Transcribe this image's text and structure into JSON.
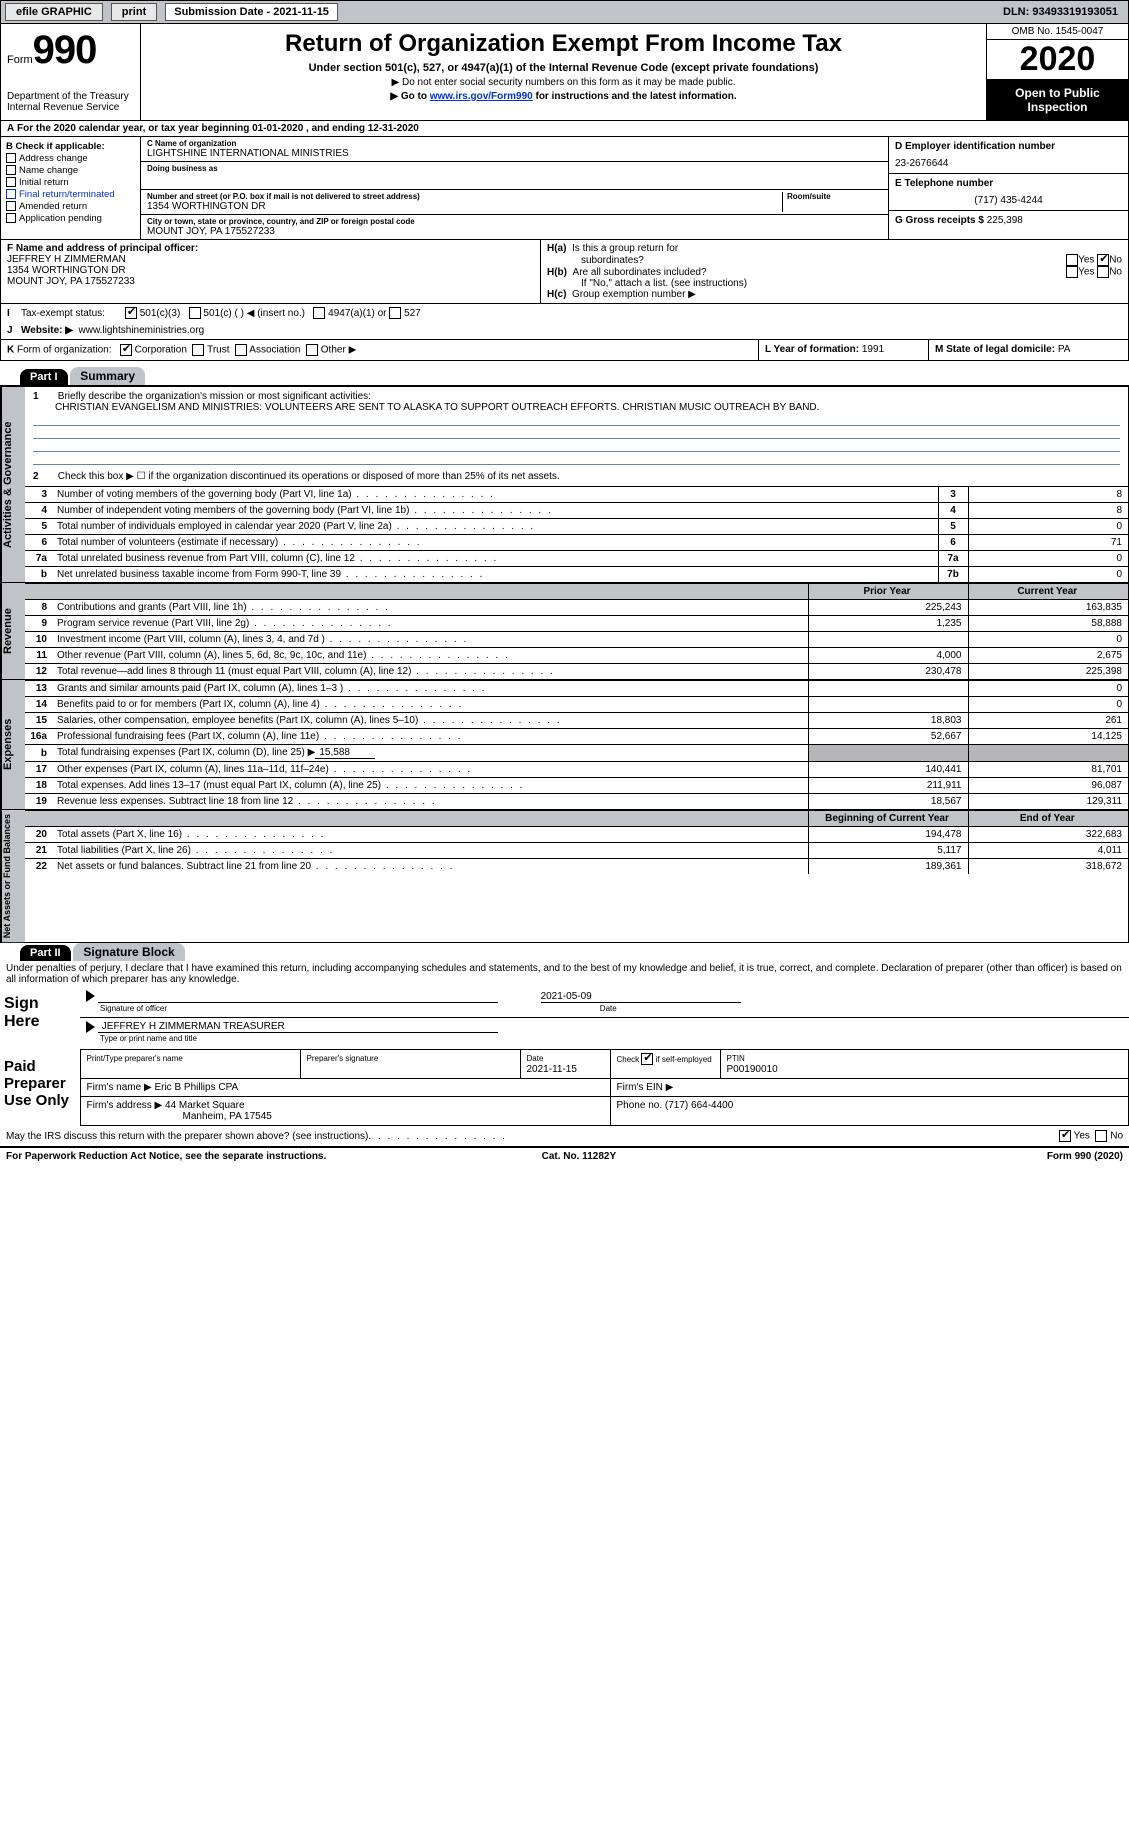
{
  "topbar": {
    "efile": "efile GRAPHIC",
    "print": "print",
    "submission": "Submission Date - 2021-11-15",
    "dln": "DLN: 93493319193051"
  },
  "header": {
    "form_label": "Form",
    "form_num": "990",
    "dept1": "Department of the Treasury",
    "dept2": "Internal Revenue Service",
    "title": "Return of Organization Exempt From Income Tax",
    "subtitle": "Under section 501(c), 527, or 4947(a)(1) of the Internal Revenue Code (except private foundations)",
    "note1_pre": "▶ Do not enter social security numbers on this form as it may be made public.",
    "note2_pre": "▶ Go to ",
    "note2_link": "www.irs.gov/Form990",
    "note2_post": " for instructions and the latest information.",
    "omb": "OMB No. 1545-0047",
    "year": "2020",
    "inspect1": "Open to Public",
    "inspect2": "Inspection"
  },
  "period": {
    "label_a": "A",
    "text": "For the 2020 calendar year, or tax year beginning 01-01-2020     , and ending 12-31-2020"
  },
  "sectionB": {
    "b_label": "B Check if applicable:",
    "items": [
      "Address change",
      "Name change",
      "Initial return",
      "Final return/terminated",
      "Amended return",
      "Application pending"
    ],
    "c_label": "C Name of organization",
    "c_name": "LIGHTSHINE INTERNATIONAL MINISTRIES",
    "dba_label": "Doing business as",
    "addr_label": "Number and street (or P.O. box if mail is not delivered to street address)",
    "room_label": "Room/suite",
    "addr": "1354 WORTHINGTON DR",
    "city_label": "City or town, state or province, country, and ZIP or foreign postal code",
    "city": "MOUNT JOY, PA  175527233",
    "d_label": "D Employer identification number",
    "d_val": "23-2676644",
    "e_label": "E Telephone number",
    "e_val": "(717) 435-4244",
    "g_label": "G Gross receipts $",
    "g_val": "225,398"
  },
  "sectionF": {
    "f_label": "F Name and address of principal officer:",
    "f_name": "JEFFREY H ZIMMERMAN",
    "f_addr1": "1354 WORTHINGTON DR",
    "f_addr2": "MOUNT JOY, PA  175527233",
    "ha": "H(a)  Is this a group return for",
    "ha2": "subordinates?",
    "hb": "H(b)  Are all subordinates included?",
    "hb_note": "If \"No,\" attach a list. (see instructions)",
    "hc": "H(c)  Group exemption number ▶",
    "yes": "Yes",
    "no": "No"
  },
  "rowI": {
    "label": "I",
    "text": "Tax-exempt status:",
    "o1": "501(c)(3)",
    "o2": "501(c) (   ) ◀ (insert no.)",
    "o3": "4947(a)(1) or",
    "o4": "527"
  },
  "rowJ": {
    "label": "J",
    "text": "Website: ▶",
    "val": "www.lightshineministries.org"
  },
  "rowK": {
    "label": "K",
    "text": "Form of organization:",
    "o1": "Corporation",
    "o2": "Trust",
    "o3": "Association",
    "o4": "Other ▶",
    "l_label": "L Year of formation:",
    "l_val": "1991",
    "m_label": "M State of legal domicile:",
    "m_val": "PA"
  },
  "parts": {
    "p1": "Part I",
    "p1_title": "Summary",
    "p2": "Part II",
    "p2_title": "Signature Block"
  },
  "vtabs": {
    "gov": "Activities & Governance",
    "rev": "Revenue",
    "exp": "Expenses",
    "net": "Net Assets or Fund Balances"
  },
  "summary": {
    "l1_label": "1",
    "l1_text": "Briefly describe the organization's mission or most significant activities:",
    "l1_val": "CHRISTIAN EVANGELISM AND MINISTRIES: VOLUNTEERS ARE SENT TO ALASKA TO SUPPORT OUTREACH EFFORTS. CHRISTIAN MUSIC OUTREACH BY BAND.",
    "l2_label": "2",
    "l2_text": "Check this box ▶ ☐ if the organization discontinued its operations or disposed of more than 25% of its net assets.",
    "rows_gov": [
      {
        "n": "3",
        "d": "Number of voting members of the governing body (Part VI, line 1a)",
        "k": "3",
        "v": "8"
      },
      {
        "n": "4",
        "d": "Number of independent voting members of the governing body (Part VI, line 1b)",
        "k": "4",
        "v": "8"
      },
      {
        "n": "5",
        "d": "Total number of individuals employed in calendar year 2020 (Part V, line 2a)",
        "k": "5",
        "v": "0"
      },
      {
        "n": "6",
        "d": "Total number of volunteers (estimate if necessary)",
        "k": "6",
        "v": "71"
      },
      {
        "n": "7a",
        "d": "Total unrelated business revenue from Part VIII, column (C), line 12",
        "k": "7a",
        "v": "0"
      },
      {
        "n": "b",
        "d": "Net unrelated business taxable income from Form 990-T, line 39",
        "k": "7b",
        "v": "0"
      }
    ],
    "col_prior": "Prior Year",
    "col_current": "Current Year",
    "rows_rev": [
      {
        "n": "8",
        "d": "Contributions and grants (Part VIII, line 1h)",
        "p": "225,243",
        "c": "163,835"
      },
      {
        "n": "9",
        "d": "Program service revenue (Part VIII, line 2g)",
        "p": "1,235",
        "c": "58,888"
      },
      {
        "n": "10",
        "d": "Investment income (Part VIII, column (A), lines 3, 4, and 7d )",
        "p": "",
        "c": "0"
      },
      {
        "n": "11",
        "d": "Other revenue (Part VIII, column (A), lines 5, 6d, 8c, 9c, 10c, and 11e)",
        "p": "4,000",
        "c": "2,675"
      },
      {
        "n": "12",
        "d": "Total revenue—add lines 8 through 11 (must equal Part VIII, column (A), line 12)",
        "p": "230,478",
        "c": "225,398"
      }
    ],
    "rows_exp": [
      {
        "n": "13",
        "d": "Grants and similar amounts paid (Part IX, column (A), lines 1–3 )",
        "p": "",
        "c": "0"
      },
      {
        "n": "14",
        "d": "Benefits paid to or for members (Part IX, column (A), line 4)",
        "p": "",
        "c": "0"
      },
      {
        "n": "15",
        "d": "Salaries, other compensation, employee benefits (Part IX, column (A), lines 5–10)",
        "p": "18,803",
        "c": "261"
      },
      {
        "n": "16a",
        "d": "Professional fundraising fees (Part IX, column (A), line 11e)",
        "p": "52,667",
        "c": "14,125"
      }
    ],
    "l16b_n": "b",
    "l16b_d": "Total fundraising expenses (Part IX, column (D), line 25) ▶",
    "l16b_v": "15,588",
    "rows_exp2": [
      {
        "n": "17",
        "d": "Other expenses (Part IX, column (A), lines 11a–11d, 11f–24e)",
        "p": "140,441",
        "c": "81,701"
      },
      {
        "n": "18",
        "d": "Total expenses. Add lines 13–17 (must equal Part IX, column (A), line 25)",
        "p": "211,911",
        "c": "96,087"
      },
      {
        "n": "19",
        "d": "Revenue less expenses. Subtract line 18 from line 12",
        "p": "18,567",
        "c": "129,311"
      }
    ],
    "col_begin": "Beginning of Current Year",
    "col_end": "End of Year",
    "rows_net": [
      {
        "n": "20",
        "d": "Total assets (Part X, line 16)",
        "p": "194,478",
        "c": "322,683"
      },
      {
        "n": "21",
        "d": "Total liabilities (Part X, line 26)",
        "p": "5,117",
        "c": "4,011"
      },
      {
        "n": "22",
        "d": "Net assets or fund balances. Subtract line 21 from line 20",
        "p": "189,361",
        "c": "318,672"
      }
    ]
  },
  "sig": {
    "declaration": "Under penalties of perjury, I declare that I have examined this return, including accompanying schedules and statements, and to the best of my knowledge and belief, it is true, correct, and complete. Declaration of preparer (other than officer) is based on all information of which preparer has any knowledge.",
    "sign_here": "Sign Here",
    "sig_officer": "Signature of officer",
    "date_label": "Date",
    "sig_date": "2021-05-09",
    "officer_name": "JEFFREY H ZIMMERMAN  TREASURER",
    "type_name": "Type or print name and title",
    "paid": "Paid Preparer Use Only",
    "pt_name_label": "Print/Type preparer's name",
    "pt_sig_label": "Preparer's signature",
    "pt_date_label": "Date",
    "pt_date": "2021-11-15",
    "pt_check_label": "Check ☑ if self-employed",
    "ptin_label": "PTIN",
    "ptin": "P00190010",
    "firm_name_label": "Firm's name    ▶",
    "firm_name": "Eric B Phillips CPA",
    "firm_ein_label": "Firm's EIN ▶",
    "firm_addr_label": "Firm's address ▶",
    "firm_addr1": "44 Market Square",
    "firm_addr2": "Manheim, PA  17545",
    "phone_label": "Phone no.",
    "phone": "(717) 664-4400",
    "discuss": "May the IRS discuss this return with the preparer shown above? (see instructions)"
  },
  "footer": {
    "left": "For Paperwork Reduction Act Notice, see the separate instructions.",
    "mid": "Cat. No. 11282Y",
    "right": "Form 990 (2020)"
  }
}
